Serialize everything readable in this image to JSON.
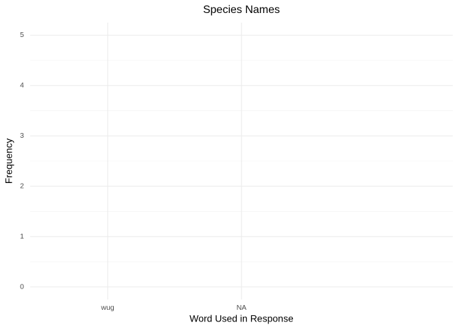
{
  "chart_data": {
    "type": "bar",
    "title": "Species Names",
    "x_label": "Word Used in Response",
    "y_label": "Frequency",
    "categories": [
      "wug",
      "NA"
    ],
    "ylim": [
      -0.25,
      5.25
    ],
    "yticks": [
      0,
      1,
      2,
      3,
      4,
      5
    ],
    "grid": true
  }
}
